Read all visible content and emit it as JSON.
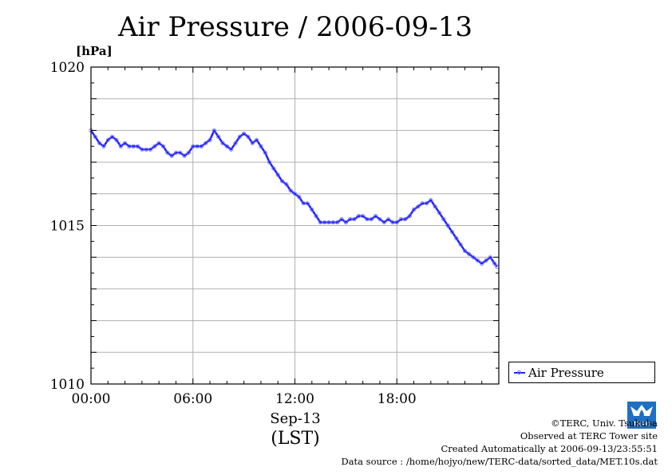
{
  "title": "Air Pressure / 2006-09-13",
  "unit_label": "[hPa]",
  "x_date_label": "Sep-13",
  "x_tz_label": "(LST)",
  "legend_label": "Air Pressure",
  "credits": {
    "line1": "©TERC, Univ. Tsukuba",
    "line2": "Observed at TERC Tower site",
    "line3": "Created Automatically at 2006-09-13/23:55:51",
    "line4": "Data source : /home/hojyo/new/TERC-data/sorted_data/MET.10s.dat"
  },
  "logo_text": "TERC",
  "colors": {
    "series": "#2020ff",
    "marker": "#7070ff",
    "grid": "#b0b0b0"
  },
  "chart_data": {
    "type": "line",
    "title": "Air Pressure / 2006-09-13",
    "xlabel": "Sep-13 (LST)",
    "ylabel": "[hPa]",
    "xlim": [
      0,
      24
    ],
    "ylim": [
      1010,
      1020
    ],
    "x_ticks": [
      0,
      6,
      12,
      18
    ],
    "x_tick_labels": [
      "00:00",
      "06:00",
      "12:00",
      "18:00"
    ],
    "y_ticks": [
      1010,
      1015,
      1020
    ],
    "y_tick_labels": [
      "1010",
      "1015",
      "1020"
    ],
    "grid": true,
    "legend_position": "bottom-right-outside",
    "series": [
      {
        "name": "Air Pressure",
        "x": [
          0.0,
          0.25,
          0.5,
          0.75,
          1.0,
          1.25,
          1.5,
          1.75,
          2.0,
          2.25,
          2.5,
          2.75,
          3.0,
          3.25,
          3.5,
          3.75,
          4.0,
          4.25,
          4.5,
          4.75,
          5.0,
          5.25,
          5.5,
          5.75,
          6.0,
          6.25,
          6.5,
          6.75,
          7.0,
          7.25,
          7.5,
          7.75,
          8.0,
          8.25,
          8.5,
          8.75,
          9.0,
          9.25,
          9.5,
          9.75,
          10.0,
          10.25,
          10.5,
          10.75,
          11.0,
          11.25,
          11.5,
          11.75,
          12.0,
          12.25,
          12.5,
          12.75,
          13.0,
          13.25,
          13.5,
          13.75,
          14.0,
          14.25,
          14.5,
          14.75,
          15.0,
          15.25,
          15.5,
          15.75,
          16.0,
          16.25,
          16.5,
          16.75,
          17.0,
          17.25,
          17.5,
          17.75,
          18.0,
          18.25,
          18.5,
          18.75,
          19.0,
          19.25,
          19.5,
          19.75,
          20.0,
          20.25,
          20.5,
          20.75,
          21.0,
          21.25,
          21.5,
          21.75,
          22.0,
          22.25,
          22.5,
          22.75,
          23.0,
          23.25,
          23.5,
          23.75,
          23.9
        ],
        "y": [
          1018.0,
          1017.8,
          1017.6,
          1017.5,
          1017.7,
          1017.8,
          1017.7,
          1017.5,
          1017.6,
          1017.5,
          1017.5,
          1017.5,
          1017.4,
          1017.4,
          1017.4,
          1017.5,
          1017.6,
          1017.5,
          1017.3,
          1017.2,
          1017.3,
          1017.3,
          1017.2,
          1017.3,
          1017.5,
          1017.5,
          1017.5,
          1017.6,
          1017.7,
          1018.0,
          1017.8,
          1017.6,
          1017.5,
          1017.4,
          1017.6,
          1017.8,
          1017.9,
          1017.8,
          1017.6,
          1017.7,
          1017.5,
          1017.3,
          1017.0,
          1016.8,
          1016.6,
          1016.4,
          1016.3,
          1016.1,
          1016.0,
          1015.9,
          1015.7,
          1015.7,
          1015.5,
          1015.3,
          1015.1,
          1015.1,
          1015.1,
          1015.1,
          1015.1,
          1015.2,
          1015.1,
          1015.2,
          1015.2,
          1015.3,
          1015.3,
          1015.2,
          1015.2,
          1015.3,
          1015.2,
          1015.1,
          1015.2,
          1015.1,
          1015.1,
          1015.2,
          1015.2,
          1015.3,
          1015.5,
          1015.6,
          1015.7,
          1015.7,
          1015.8,
          1015.6,
          1015.4,
          1015.2,
          1015.0,
          1014.8,
          1014.6,
          1014.4,
          1014.2,
          1014.1,
          1014.0,
          1013.9,
          1013.8,
          1013.9,
          1014.0,
          1013.8,
          1013.7
        ]
      }
    ]
  }
}
